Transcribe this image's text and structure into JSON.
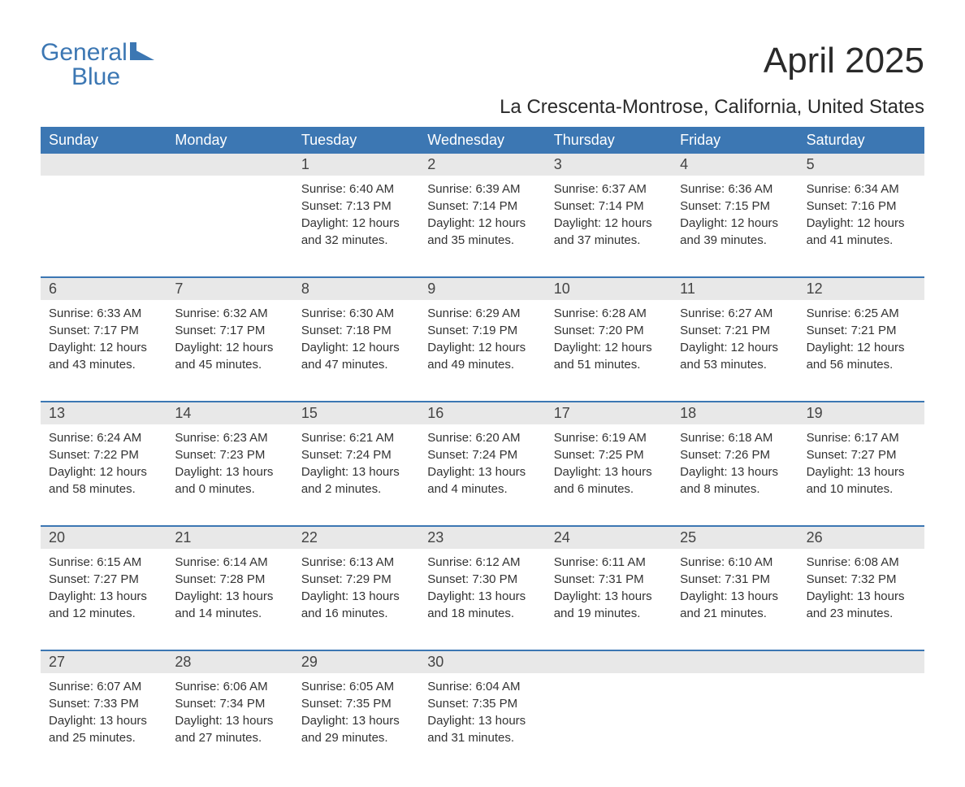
{
  "logo": {
    "word1": "General",
    "word2": "Blue",
    "icon_color": "#3c77b3"
  },
  "title": "April 2025",
  "location": "La Crescenta-Montrose, California, United States",
  "colors": {
    "header_bg": "#3c77b3",
    "header_text": "#ffffff",
    "date_row_bg": "#e8e8e8",
    "week_border": "#3c77b3",
    "body_text": "#333333",
    "title_text": "#2a2a2a",
    "logo_text": "#3c77b3",
    "page_bg": "#ffffff"
  },
  "typography": {
    "title_fontsize": 44,
    "location_fontsize": 24,
    "dayheader_fontsize": 18,
    "daynum_fontsize": 18,
    "cell_fontsize": 15,
    "logo_fontsize": 30
  },
  "day_names": [
    "Sunday",
    "Monday",
    "Tuesday",
    "Wednesday",
    "Thursday",
    "Friday",
    "Saturday"
  ],
  "weeks": [
    {
      "days": [
        {
          "num": "",
          "lines": []
        },
        {
          "num": "",
          "lines": []
        },
        {
          "num": "1",
          "lines": [
            "Sunrise: 6:40 AM",
            "Sunset: 7:13 PM",
            "Daylight: 12 hours",
            "and 32 minutes."
          ]
        },
        {
          "num": "2",
          "lines": [
            "Sunrise: 6:39 AM",
            "Sunset: 7:14 PM",
            "Daylight: 12 hours",
            "and 35 minutes."
          ]
        },
        {
          "num": "3",
          "lines": [
            "Sunrise: 6:37 AM",
            "Sunset: 7:14 PM",
            "Daylight: 12 hours",
            "and 37 minutes."
          ]
        },
        {
          "num": "4",
          "lines": [
            "Sunrise: 6:36 AM",
            "Sunset: 7:15 PM",
            "Daylight: 12 hours",
            "and 39 minutes."
          ]
        },
        {
          "num": "5",
          "lines": [
            "Sunrise: 6:34 AM",
            "Sunset: 7:16 PM",
            "Daylight: 12 hours",
            "and 41 minutes."
          ]
        }
      ]
    },
    {
      "days": [
        {
          "num": "6",
          "lines": [
            "Sunrise: 6:33 AM",
            "Sunset: 7:17 PM",
            "Daylight: 12 hours",
            "and 43 minutes."
          ]
        },
        {
          "num": "7",
          "lines": [
            "Sunrise: 6:32 AM",
            "Sunset: 7:17 PM",
            "Daylight: 12 hours",
            "and 45 minutes."
          ]
        },
        {
          "num": "8",
          "lines": [
            "Sunrise: 6:30 AM",
            "Sunset: 7:18 PM",
            "Daylight: 12 hours",
            "and 47 minutes."
          ]
        },
        {
          "num": "9",
          "lines": [
            "Sunrise: 6:29 AM",
            "Sunset: 7:19 PM",
            "Daylight: 12 hours",
            "and 49 minutes."
          ]
        },
        {
          "num": "10",
          "lines": [
            "Sunrise: 6:28 AM",
            "Sunset: 7:20 PM",
            "Daylight: 12 hours",
            "and 51 minutes."
          ]
        },
        {
          "num": "11",
          "lines": [
            "Sunrise: 6:27 AM",
            "Sunset: 7:21 PM",
            "Daylight: 12 hours",
            "and 53 minutes."
          ]
        },
        {
          "num": "12",
          "lines": [
            "Sunrise: 6:25 AM",
            "Sunset: 7:21 PM",
            "Daylight: 12 hours",
            "and 56 minutes."
          ]
        }
      ]
    },
    {
      "days": [
        {
          "num": "13",
          "lines": [
            "Sunrise: 6:24 AM",
            "Sunset: 7:22 PM",
            "Daylight: 12 hours",
            "and 58 minutes."
          ]
        },
        {
          "num": "14",
          "lines": [
            "Sunrise: 6:23 AM",
            "Sunset: 7:23 PM",
            "Daylight: 13 hours",
            "and 0 minutes."
          ]
        },
        {
          "num": "15",
          "lines": [
            "Sunrise: 6:21 AM",
            "Sunset: 7:24 PM",
            "Daylight: 13 hours",
            "and 2 minutes."
          ]
        },
        {
          "num": "16",
          "lines": [
            "Sunrise: 6:20 AM",
            "Sunset: 7:24 PM",
            "Daylight: 13 hours",
            "and 4 minutes."
          ]
        },
        {
          "num": "17",
          "lines": [
            "Sunrise: 6:19 AM",
            "Sunset: 7:25 PM",
            "Daylight: 13 hours",
            "and 6 minutes."
          ]
        },
        {
          "num": "18",
          "lines": [
            "Sunrise: 6:18 AM",
            "Sunset: 7:26 PM",
            "Daylight: 13 hours",
            "and 8 minutes."
          ]
        },
        {
          "num": "19",
          "lines": [
            "Sunrise: 6:17 AM",
            "Sunset: 7:27 PM",
            "Daylight: 13 hours",
            "and 10 minutes."
          ]
        }
      ]
    },
    {
      "days": [
        {
          "num": "20",
          "lines": [
            "Sunrise: 6:15 AM",
            "Sunset: 7:27 PM",
            "Daylight: 13 hours",
            "and 12 minutes."
          ]
        },
        {
          "num": "21",
          "lines": [
            "Sunrise: 6:14 AM",
            "Sunset: 7:28 PM",
            "Daylight: 13 hours",
            "and 14 minutes."
          ]
        },
        {
          "num": "22",
          "lines": [
            "Sunrise: 6:13 AM",
            "Sunset: 7:29 PM",
            "Daylight: 13 hours",
            "and 16 minutes."
          ]
        },
        {
          "num": "23",
          "lines": [
            "Sunrise: 6:12 AM",
            "Sunset: 7:30 PM",
            "Daylight: 13 hours",
            "and 18 minutes."
          ]
        },
        {
          "num": "24",
          "lines": [
            "Sunrise: 6:11 AM",
            "Sunset: 7:31 PM",
            "Daylight: 13 hours",
            "and 19 minutes."
          ]
        },
        {
          "num": "25",
          "lines": [
            "Sunrise: 6:10 AM",
            "Sunset: 7:31 PM",
            "Daylight: 13 hours",
            "and 21 minutes."
          ]
        },
        {
          "num": "26",
          "lines": [
            "Sunrise: 6:08 AM",
            "Sunset: 7:32 PM",
            "Daylight: 13 hours",
            "and 23 minutes."
          ]
        }
      ]
    },
    {
      "days": [
        {
          "num": "27",
          "lines": [
            "Sunrise: 6:07 AM",
            "Sunset: 7:33 PM",
            "Daylight: 13 hours",
            "and 25 minutes."
          ]
        },
        {
          "num": "28",
          "lines": [
            "Sunrise: 6:06 AM",
            "Sunset: 7:34 PM",
            "Daylight: 13 hours",
            "and 27 minutes."
          ]
        },
        {
          "num": "29",
          "lines": [
            "Sunrise: 6:05 AM",
            "Sunset: 7:35 PM",
            "Daylight: 13 hours",
            "and 29 minutes."
          ]
        },
        {
          "num": "30",
          "lines": [
            "Sunrise: 6:04 AM",
            "Sunset: 7:35 PM",
            "Daylight: 13 hours",
            "and 31 minutes."
          ]
        },
        {
          "num": "",
          "lines": []
        },
        {
          "num": "",
          "lines": []
        },
        {
          "num": "",
          "lines": []
        }
      ]
    }
  ]
}
